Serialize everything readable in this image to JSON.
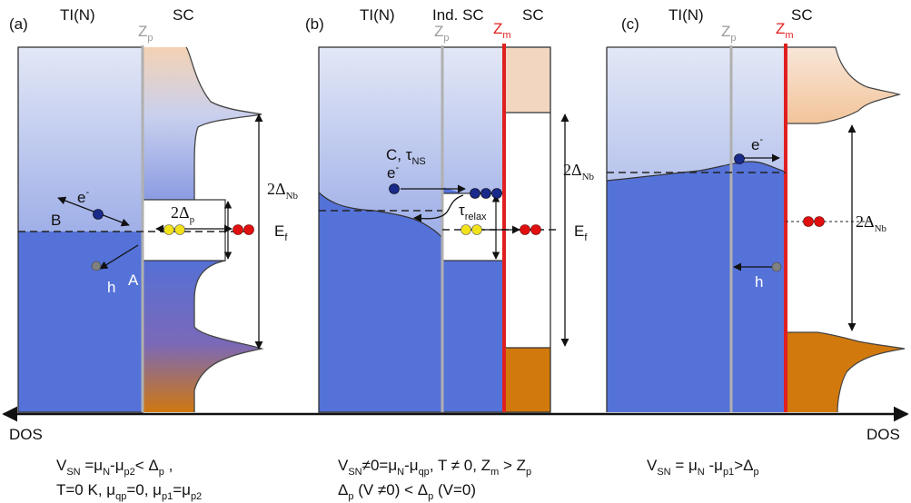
{
  "colors": {
    "dos_blue": "#5572d8",
    "gradient_top": "#dfe6f6",
    "sc_orange": "#d2790e",
    "sc_peach": "#f4d4b8",
    "zm_red": "#e02020",
    "zp_grey": "#b0b0b0",
    "electron": "#1a2a8a",
    "cooper_pair": "#e01010",
    "quasiparticle": "#f1e21a",
    "hole": "#808080"
  },
  "axis": {
    "left_label": "DOS",
    "right_label": "DOS"
  },
  "panels": {
    "a": {
      "tag": "(a)",
      "ti": "TI(N)",
      "sc": "SC",
      "zp": "Z",
      "zp_sub": "p",
      "e": "e",
      "e_sup": "-",
      "b": "B",
      "a": "A",
      "h": "h",
      "gap": "2Δ",
      "gap_sub": "p",
      "ef": "E",
      "ef_sub": "f",
      "nb": "2Δ",
      "nb_sub": "Nb",
      "cap1": [
        {
          "t": "V"
        },
        {
          "t": "SN",
          "sub": true
        },
        {
          "t": " =μ"
        },
        {
          "t": "N",
          "sub": true
        },
        {
          "t": "-μ"
        },
        {
          "t": "p2",
          "sub": true
        },
        {
          "t": "< Δ"
        },
        {
          "t": "p",
          "sub": true
        },
        {
          "t": " ,"
        }
      ],
      "cap2": [
        {
          "t": "T=0 K, μ"
        },
        {
          "t": "qp",
          "sub": true
        },
        {
          "t": "=0, μ"
        },
        {
          "t": "p1",
          "sub": true
        },
        {
          "t": "=μ"
        },
        {
          "t": "p2",
          "sub": true
        }
      ]
    },
    "b": {
      "tag": "(b)",
      "ti": "TI(N)",
      "ind": "Ind. SC",
      "sc": "SC",
      "zp": "Z",
      "zp_sub": "p",
      "zm": "Z",
      "zm_sub": "m",
      "c": "C, τ",
      "c_sub": "NS",
      "e": "e",
      "e_sup": "-",
      "relax": "τ",
      "relax_sub": "relax",
      "ef": "E",
      "ef_sub": "f",
      "cap1": [
        {
          "t": "V"
        },
        {
          "t": "SN",
          "sub": true
        },
        {
          "t": "≠0=μ"
        },
        {
          "t": "N",
          "sub": true
        },
        {
          "t": "-μ"
        },
        {
          "t": "qp",
          "sub": true
        },
        {
          "t": ", T ≠ 0, Z"
        },
        {
          "t": "m",
          "sub": true
        },
        {
          "t": " > Z"
        },
        {
          "t": "p",
          "sub": true
        }
      ],
      "cap2": [
        {
          "t": "Δ"
        },
        {
          "t": "p",
          "sub": true
        },
        {
          "t": " (V ≠0) < Δ"
        },
        {
          "t": "p",
          "sub": true
        },
        {
          "t": " (V=0)"
        }
      ]
    },
    "c": {
      "tag": "(c)",
      "ti": "TI(N)",
      "sc": "SC",
      "zp": "Z",
      "zp_sub": "p",
      "zm": "Z",
      "zm_sub": "m",
      "nb_left": "2Δ",
      "nb_left_sub": "Nb",
      "nb_right": "2Δ",
      "nb_right_sub": "Nb",
      "e": "e",
      "e_sup": "-",
      "h": "h",
      "cap1": [
        {
          "t": "V"
        },
        {
          "t": "SN",
          "sub": true
        },
        {
          "t": " = μ"
        },
        {
          "t": "N",
          "sub": true
        },
        {
          "t": " -μ"
        },
        {
          "t": "p1",
          "sub": true
        },
        {
          "t": ">Δ"
        },
        {
          "t": "p",
          "sub": true
        }
      ]
    }
  }
}
